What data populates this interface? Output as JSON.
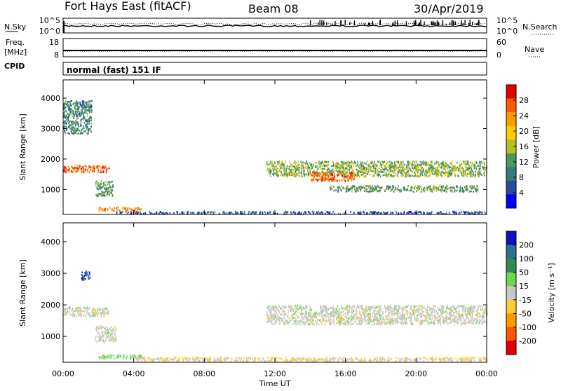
{
  "header": {
    "station": "Fort Hays East (fitACF)",
    "beam": "Beam 08",
    "date": "30/Apr/2019"
  },
  "noise_panel": {
    "left_label": "N.Sky",
    "right_label": "N.Search",
    "left_ticks": [
      "10^5",
      "10^0"
    ],
    "right_ticks": [
      "10^5",
      "10^0"
    ]
  },
  "freq_panel": {
    "left_label_line1": "Freq.",
    "left_label_line2": "[MHz]",
    "right_label": "Nave",
    "left_ticks": [
      "18",
      "8"
    ],
    "right_ticks": [
      "60",
      "0"
    ]
  },
  "cpid": {
    "label": "CPID",
    "text": "normal (fast) 151 IF"
  },
  "power_panel": {
    "ylabel": "Slant Range [km]",
    "yticks": [
      "4000",
      "3000",
      "2000",
      "1000"
    ],
    "colorbar_label": "Power [dB]",
    "colorbar_ticks": [
      "28",
      "24",
      "20",
      "16",
      "12",
      "8",
      "4"
    ],
    "colorbar_colors": [
      "#e00000",
      "#ff5a00",
      "#ff9a00",
      "#ffcc00",
      "#b8c020",
      "#4a9a5a",
      "#3a7a7a",
      "#2a4a9a",
      "#0000ff"
    ]
  },
  "velocity_panel": {
    "ylabel": "Slant Range [km]",
    "yticks": [
      "4000",
      "3000",
      "2000",
      "1000"
    ],
    "colorbar_label": "Velocity [m s⁻¹]",
    "colorbar_ticks": [
      "200",
      "100",
      "50",
      "15",
      "-15",
      "-50",
      "-100",
      "-200"
    ],
    "colorbar_colors": [
      "#1010c0",
      "#2f6f8f",
      "#2e8b57",
      "#6ed64a",
      "#c8c8c8",
      "#ffcc33",
      "#ff9900",
      "#ff5500",
      "#e00000"
    ]
  },
  "xaxis": {
    "label": "Time UT",
    "ticks": [
      "00:00",
      "04:00",
      "08:00",
      "12:00",
      "16:00",
      "20:00",
      "00:00"
    ]
  },
  "chart_data": [
    {
      "type": "heatmap",
      "title": "Power",
      "xlabel": "Time UT",
      "ylabel": "Slant Range [km]",
      "xlim": [
        0,
        24
      ],
      "ylim": [
        180,
        4600
      ],
      "color_label": "Power [dB]",
      "color_range": [
        0,
        32
      ],
      "regions": [
        {
          "t_start": 0.0,
          "t_end": 2.6,
          "range_center_km": 1700,
          "range_width_km": 220,
          "level_db": 26
        },
        {
          "t_start": 0.0,
          "t_end": 1.6,
          "range_center_km": 3400,
          "range_width_km": 1100,
          "level_db": 10
        },
        {
          "t_start": 1.8,
          "t_end": 2.8,
          "range_center_km": 1050,
          "range_width_km": 500,
          "level_db": 12
        },
        {
          "t_start": 2.0,
          "t_end": 4.4,
          "range_center_km": 380,
          "range_width_km": 120,
          "level_db": 24
        },
        {
          "t_start": 3.0,
          "t_end": 24.0,
          "range_center_km": 260,
          "range_width_km": 80,
          "level_db": 6
        },
        {
          "t_start": 11.5,
          "t_end": 24.0,
          "range_center_km": 1700,
          "range_width_km": 500,
          "level_db": 14
        },
        {
          "t_start": 14.0,
          "t_end": 16.5,
          "range_center_km": 1450,
          "range_width_km": 300,
          "level_db": 26
        },
        {
          "t_start": 15.0,
          "t_end": 23.5,
          "range_center_km": 1050,
          "range_width_km": 200,
          "level_db": 12
        }
      ]
    },
    {
      "type": "heatmap",
      "title": "Velocity",
      "xlabel": "Time UT",
      "ylabel": "Slant Range [km]",
      "xlim": [
        0,
        24
      ],
      "ylim": [
        180,
        4600
      ],
      "color_label": "Velocity [m s⁻¹]",
      "color_range": [
        -200,
        200
      ],
      "regions": [
        {
          "t_start": 0.0,
          "t_end": 2.6,
          "range_center_km": 1800,
          "range_width_km": 300,
          "velocity": 0
        },
        {
          "t_start": 1.0,
          "t_end": 1.5,
          "range_center_km": 2950,
          "range_width_km": 300,
          "velocity": 200
        },
        {
          "t_start": 1.8,
          "t_end": 3.0,
          "range_center_km": 1100,
          "range_width_km": 500,
          "velocity": 0
        },
        {
          "t_start": 2.0,
          "t_end": 4.6,
          "range_center_km": 380,
          "range_width_km": 120,
          "velocity": 30
        },
        {
          "t_start": 4.0,
          "t_end": 24.0,
          "range_center_km": 300,
          "range_width_km": 120,
          "velocity": -15
        },
        {
          "t_start": 11.5,
          "t_end": 24.0,
          "range_center_km": 1700,
          "range_width_km": 600,
          "velocity": 0
        }
      ]
    }
  ]
}
